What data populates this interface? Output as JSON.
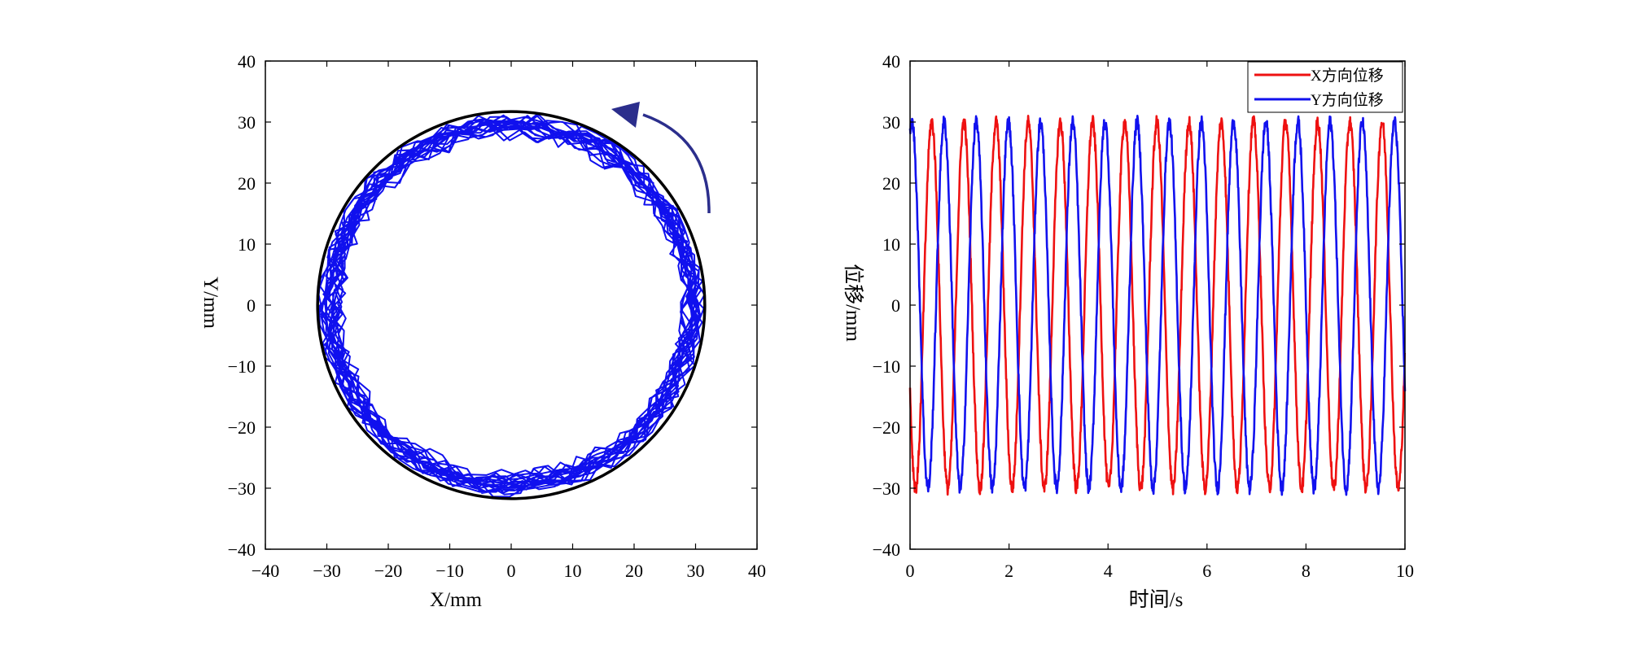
{
  "chart_data": [
    {
      "type": "line",
      "subtype": "trajectory",
      "xlabel": "X/mm",
      "ylabel": "Y/mm",
      "xlim": [
        -40,
        40
      ],
      "ylim": [
        -40,
        40
      ],
      "xticks": [
        -40,
        -30,
        -20,
        -10,
        0,
        10,
        20,
        30,
        40
      ],
      "yticks": [
        -40,
        -30,
        -20,
        -10,
        0,
        10,
        20,
        30,
        40
      ],
      "xtick_labels": [
        "−40",
        "−30",
        "−20",
        "−10",
        "0",
        "10",
        "20",
        "30",
        "40"
      ],
      "ytick_labels": [
        "−40",
        "−30",
        "−20",
        "−10",
        "0",
        "10",
        "20",
        "30",
        "40"
      ],
      "grid": false,
      "reference_circle": {
        "center": [
          0,
          0
        ],
        "radius": 31.5,
        "color": "#000000"
      },
      "trajectory": {
        "radius_mean": 29.5,
        "radius_spread": [
          27,
          31.5
        ],
        "turns": 19,
        "color": "#1010ee"
      },
      "annotation": {
        "type": "arrow",
        "direction": "counterclockwise",
        "color": "#2b2e8c"
      }
    },
    {
      "type": "line",
      "xlabel": "时间/s",
      "ylabel": "位移/mm",
      "xlim": [
        0,
        10
      ],
      "ylim": [
        -40,
        40
      ],
      "xticks": [
        0,
        2,
        4,
        6,
        8,
        10
      ],
      "yticks": [
        -40,
        -30,
        -20,
        -10,
        0,
        10,
        20,
        30,
        40
      ],
      "xtick_labels": [
        "0",
        "2",
        "4",
        "6",
        "8",
        "10"
      ],
      "ytick_labels": [
        "−40",
        "−30",
        "−20",
        "−10",
        "0",
        "10",
        "20",
        "30",
        "40"
      ],
      "grid": false,
      "legend_position": "top-right",
      "series": [
        {
          "name": "X方向位移",
          "color": "#ee1111",
          "amplitude": 30,
          "period_s": 0.65,
          "start_value": -14
        },
        {
          "name": "Y方向位移",
          "color": "#1111ee",
          "amplitude": 30,
          "period_s": 0.65,
          "start_value": 28
        }
      ]
    }
  ]
}
